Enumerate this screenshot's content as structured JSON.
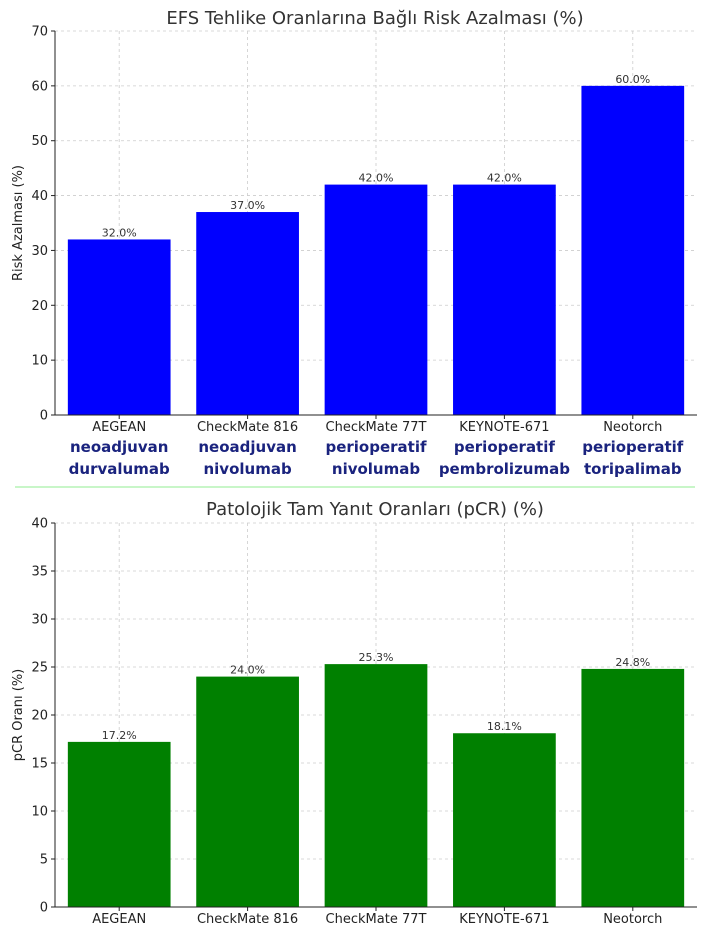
{
  "annotation_color": "#1a237e",
  "divider_color": "#90ee90",
  "chart_data": [
    {
      "type": "bar",
      "title": "EFS Tehlike Oranlarına Bağlı Risk Azalması (%)",
      "xlabel": "",
      "ylabel": "Risk Azalması (%)",
      "ylim": [
        0,
        70
      ],
      "yticks": [
        0,
        10,
        20,
        30,
        40,
        50,
        60,
        70
      ],
      "grid": true,
      "bar_color": "#0000ff",
      "categories": [
        "AEGEAN",
        "CheckMate 816",
        "CheckMate 77T",
        "KEYNOTE-671",
        "Neotorch"
      ],
      "values": [
        32.0,
        37.0,
        42.0,
        42.0,
        60.0
      ],
      "value_labels": [
        "32.0%",
        "37.0%",
        "42.0%",
        "42.0%",
        "60.0%"
      ],
      "annotations": [
        [
          "neoadjuvan",
          "durvalumab"
        ],
        [
          "neoadjuvan",
          "nivolumab"
        ],
        [
          "perioperatif",
          "nivolumab"
        ],
        [
          "perioperatif",
          "pembrolizumab"
        ],
        [
          "perioperatif",
          "toripalimab"
        ]
      ]
    },
    {
      "type": "bar",
      "title": "Patolojik Tam Yanıt Oranları (pCR) (%)",
      "xlabel": "",
      "ylabel": "pCR Oranı (%)",
      "ylim": [
        0,
        40
      ],
      "yticks": [
        0,
        5,
        10,
        15,
        20,
        25,
        30,
        35,
        40
      ],
      "grid": true,
      "bar_color": "#008000",
      "categories": [
        "AEGEAN",
        "CheckMate 816",
        "CheckMate 77T",
        "KEYNOTE-671",
        "Neotorch"
      ],
      "values": [
        17.2,
        24.0,
        25.3,
        18.1,
        24.8
      ],
      "value_labels": [
        "17.2%",
        "24.0%",
        "25.3%",
        "18.1%",
        "24.8%"
      ]
    }
  ]
}
